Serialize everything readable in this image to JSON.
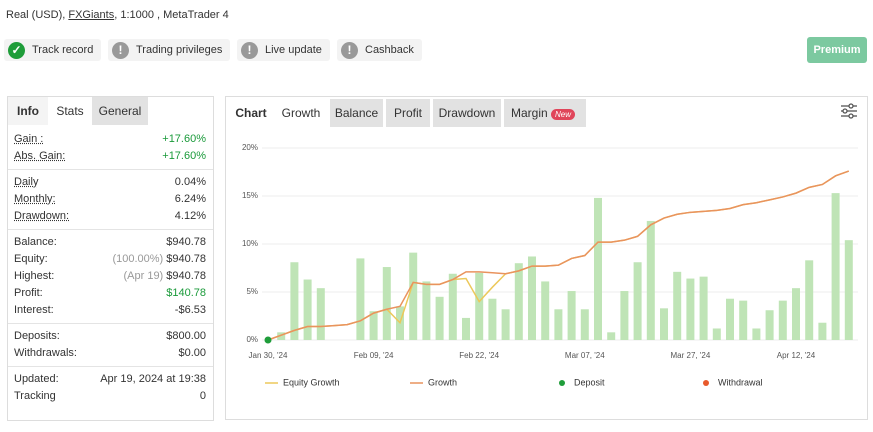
{
  "header": {
    "prefix": "Real (USD),",
    "broker": "FXGiants",
    "suffix": ", 1:1000 , MetaTrader 4"
  },
  "badges": [
    "Track record",
    "Trading privileges",
    "Live update",
    "Cashback"
  ],
  "button": "Premium",
  "stats_tabs": [
    "Info",
    "Stats",
    "General"
  ],
  "stats": [
    [
      {
        "label": "Gain :",
        "value": "+17.60%",
        "color": "#1a9a3a"
      },
      {
        "label": "Abs. Gain:",
        "value": "+17.60%",
        "color": "#1a9a3a"
      }
    ],
    [
      {
        "label": "Daily",
        "value": "0.04%"
      },
      {
        "label": "Monthly:",
        "value": "6.24%"
      },
      {
        "label": "Drawdown:",
        "value": "4.12%"
      }
    ],
    [
      {
        "label": "Balance:",
        "value": "$940.78"
      },
      {
        "label": "Equity:",
        "note": "(100.00%)",
        "value": "$940.78"
      },
      {
        "label": "Highest:",
        "note": "(Apr 19)",
        "value": "$940.78"
      },
      {
        "label": "Profit:",
        "value": "$140.78",
        "color": "#1a9a3a"
      },
      {
        "label": "Interest:",
        "value": "-$6.53"
      }
    ],
    [
      {
        "label": "Deposits:",
        "value": "$800.00"
      },
      {
        "label": "Withdrawals:",
        "value": "$0.00"
      }
    ],
    [
      {
        "label": "Updated:",
        "value": "Apr 19, 2024 at 19:38"
      },
      {
        "label": "Tracking",
        "value": "0"
      }
    ]
  ],
  "chart_tabs": [
    "Chart",
    "Growth",
    "Balance",
    "Profit",
    "Drawdown",
    "Margin"
  ],
  "new_badge": "New",
  "chart_data": {
    "type": "bar-line",
    "categories": [
      "Jan 30, '24",
      null,
      null,
      null,
      null,
      null,
      null,
      null,
      "Feb 09, '24",
      null,
      null,
      null,
      null,
      null,
      null,
      null,
      "Feb 22, '24",
      null,
      null,
      null,
      null,
      null,
      null,
      null,
      "Mar 07, '24",
      null,
      null,
      null,
      null,
      null,
      null,
      null,
      "Mar 27, '24",
      null,
      null,
      null,
      null,
      null,
      null,
      null,
      "Apr 12, '24",
      null,
      null,
      null,
      null
    ],
    "ylim": [
      0,
      20
    ],
    "yticks": [
      {
        "value": 0,
        "label": "0%"
      },
      {
        "value": 5,
        "label": "5%"
      },
      {
        "value": 10,
        "label": "10%"
      },
      {
        "value": 15,
        "label": "15%"
      },
      {
        "value": 20,
        "label": "20%"
      }
    ],
    "grid": true,
    "bars": {
      "color": "#bfe4b6",
      "values": [
        null,
        0.8,
        8.1,
        6.3,
        5.4,
        null,
        null,
        8.5,
        3.0,
        7.6,
        3.5,
        9.1,
        6.1,
        4.5,
        6.9,
        2.3,
        7.0,
        4.3,
        3.2,
        8.0,
        8.7,
        6.1,
        3.2,
        5.1,
        3.2,
        14.8,
        0.8,
        5.1,
        8.1,
        12.4,
        3.3,
        7.1,
        6.4,
        6.6,
        1.2,
        4.3,
        4.1,
        1.2,
        3.1,
        4.1,
        5.4,
        8.3,
        1.8,
        15.3,
        10.4
      ]
    },
    "series": [
      {
        "name": "Equity Growth",
        "color": "#ecc85a",
        "style": "line",
        "values": [
          0,
          0.5,
          1.0,
          1.4,
          1.4,
          1.5,
          1.6,
          2.0,
          2.8,
          3.2,
          1.8,
          6.0,
          5.8,
          5.8,
          6.3,
          6.4,
          4.0,
          5.5,
          6.9,
          7.2,
          7.7,
          7.7,
          7.8,
          8.5,
          8.8,
          10.2,
          10.2,
          10.4,
          10.8,
          12.0,
          12.7,
          13.1,
          13.3,
          13.4,
          13.5,
          13.7,
          14.1,
          14.3,
          14.6,
          14.9,
          15.3,
          15.9,
          16.2,
          17.1,
          17.6
        ]
      },
      {
        "name": "Growth",
        "color": "#e9935e",
        "style": "line",
        "values": [
          0,
          0.5,
          1.0,
          1.4,
          1.4,
          1.5,
          1.6,
          2.0,
          2.8,
          3.2,
          3.5,
          6.0,
          5.8,
          5.8,
          6.3,
          7.1,
          7.1,
          7.0,
          6.9,
          7.2,
          7.7,
          7.7,
          7.8,
          8.5,
          8.8,
          10.2,
          10.2,
          10.4,
          10.8,
          12.0,
          12.7,
          13.1,
          13.3,
          13.4,
          13.5,
          13.7,
          14.1,
          14.3,
          14.6,
          14.9,
          15.3,
          15.9,
          16.2,
          17.1,
          17.6
        ]
      },
      {
        "name": "Deposit",
        "color": "#1f9d3a",
        "style": "dot",
        "values": [
          0,
          null,
          null,
          null,
          null,
          null,
          null,
          null,
          null,
          null,
          null,
          null,
          null,
          null,
          null,
          null,
          null,
          null,
          null,
          null,
          null,
          null,
          null,
          null,
          null,
          null,
          null,
          null,
          null,
          null,
          null,
          null,
          null,
          null,
          null,
          null,
          null,
          null,
          null,
          null,
          null,
          null,
          null,
          null,
          null
        ]
      },
      {
        "name": "Withdrawal",
        "color": "#e85a2c",
        "style": "dot",
        "values": [
          null,
          null,
          null,
          null,
          null,
          null,
          null,
          null,
          null,
          null,
          null,
          null,
          null,
          null,
          null,
          null,
          null,
          null,
          null,
          null,
          null,
          null,
          null,
          null,
          null,
          null,
          null,
          null,
          null,
          null,
          null,
          null,
          null,
          null,
          null,
          null,
          null,
          null,
          null,
          null,
          null,
          null,
          null,
          null,
          null
        ]
      }
    ]
  }
}
